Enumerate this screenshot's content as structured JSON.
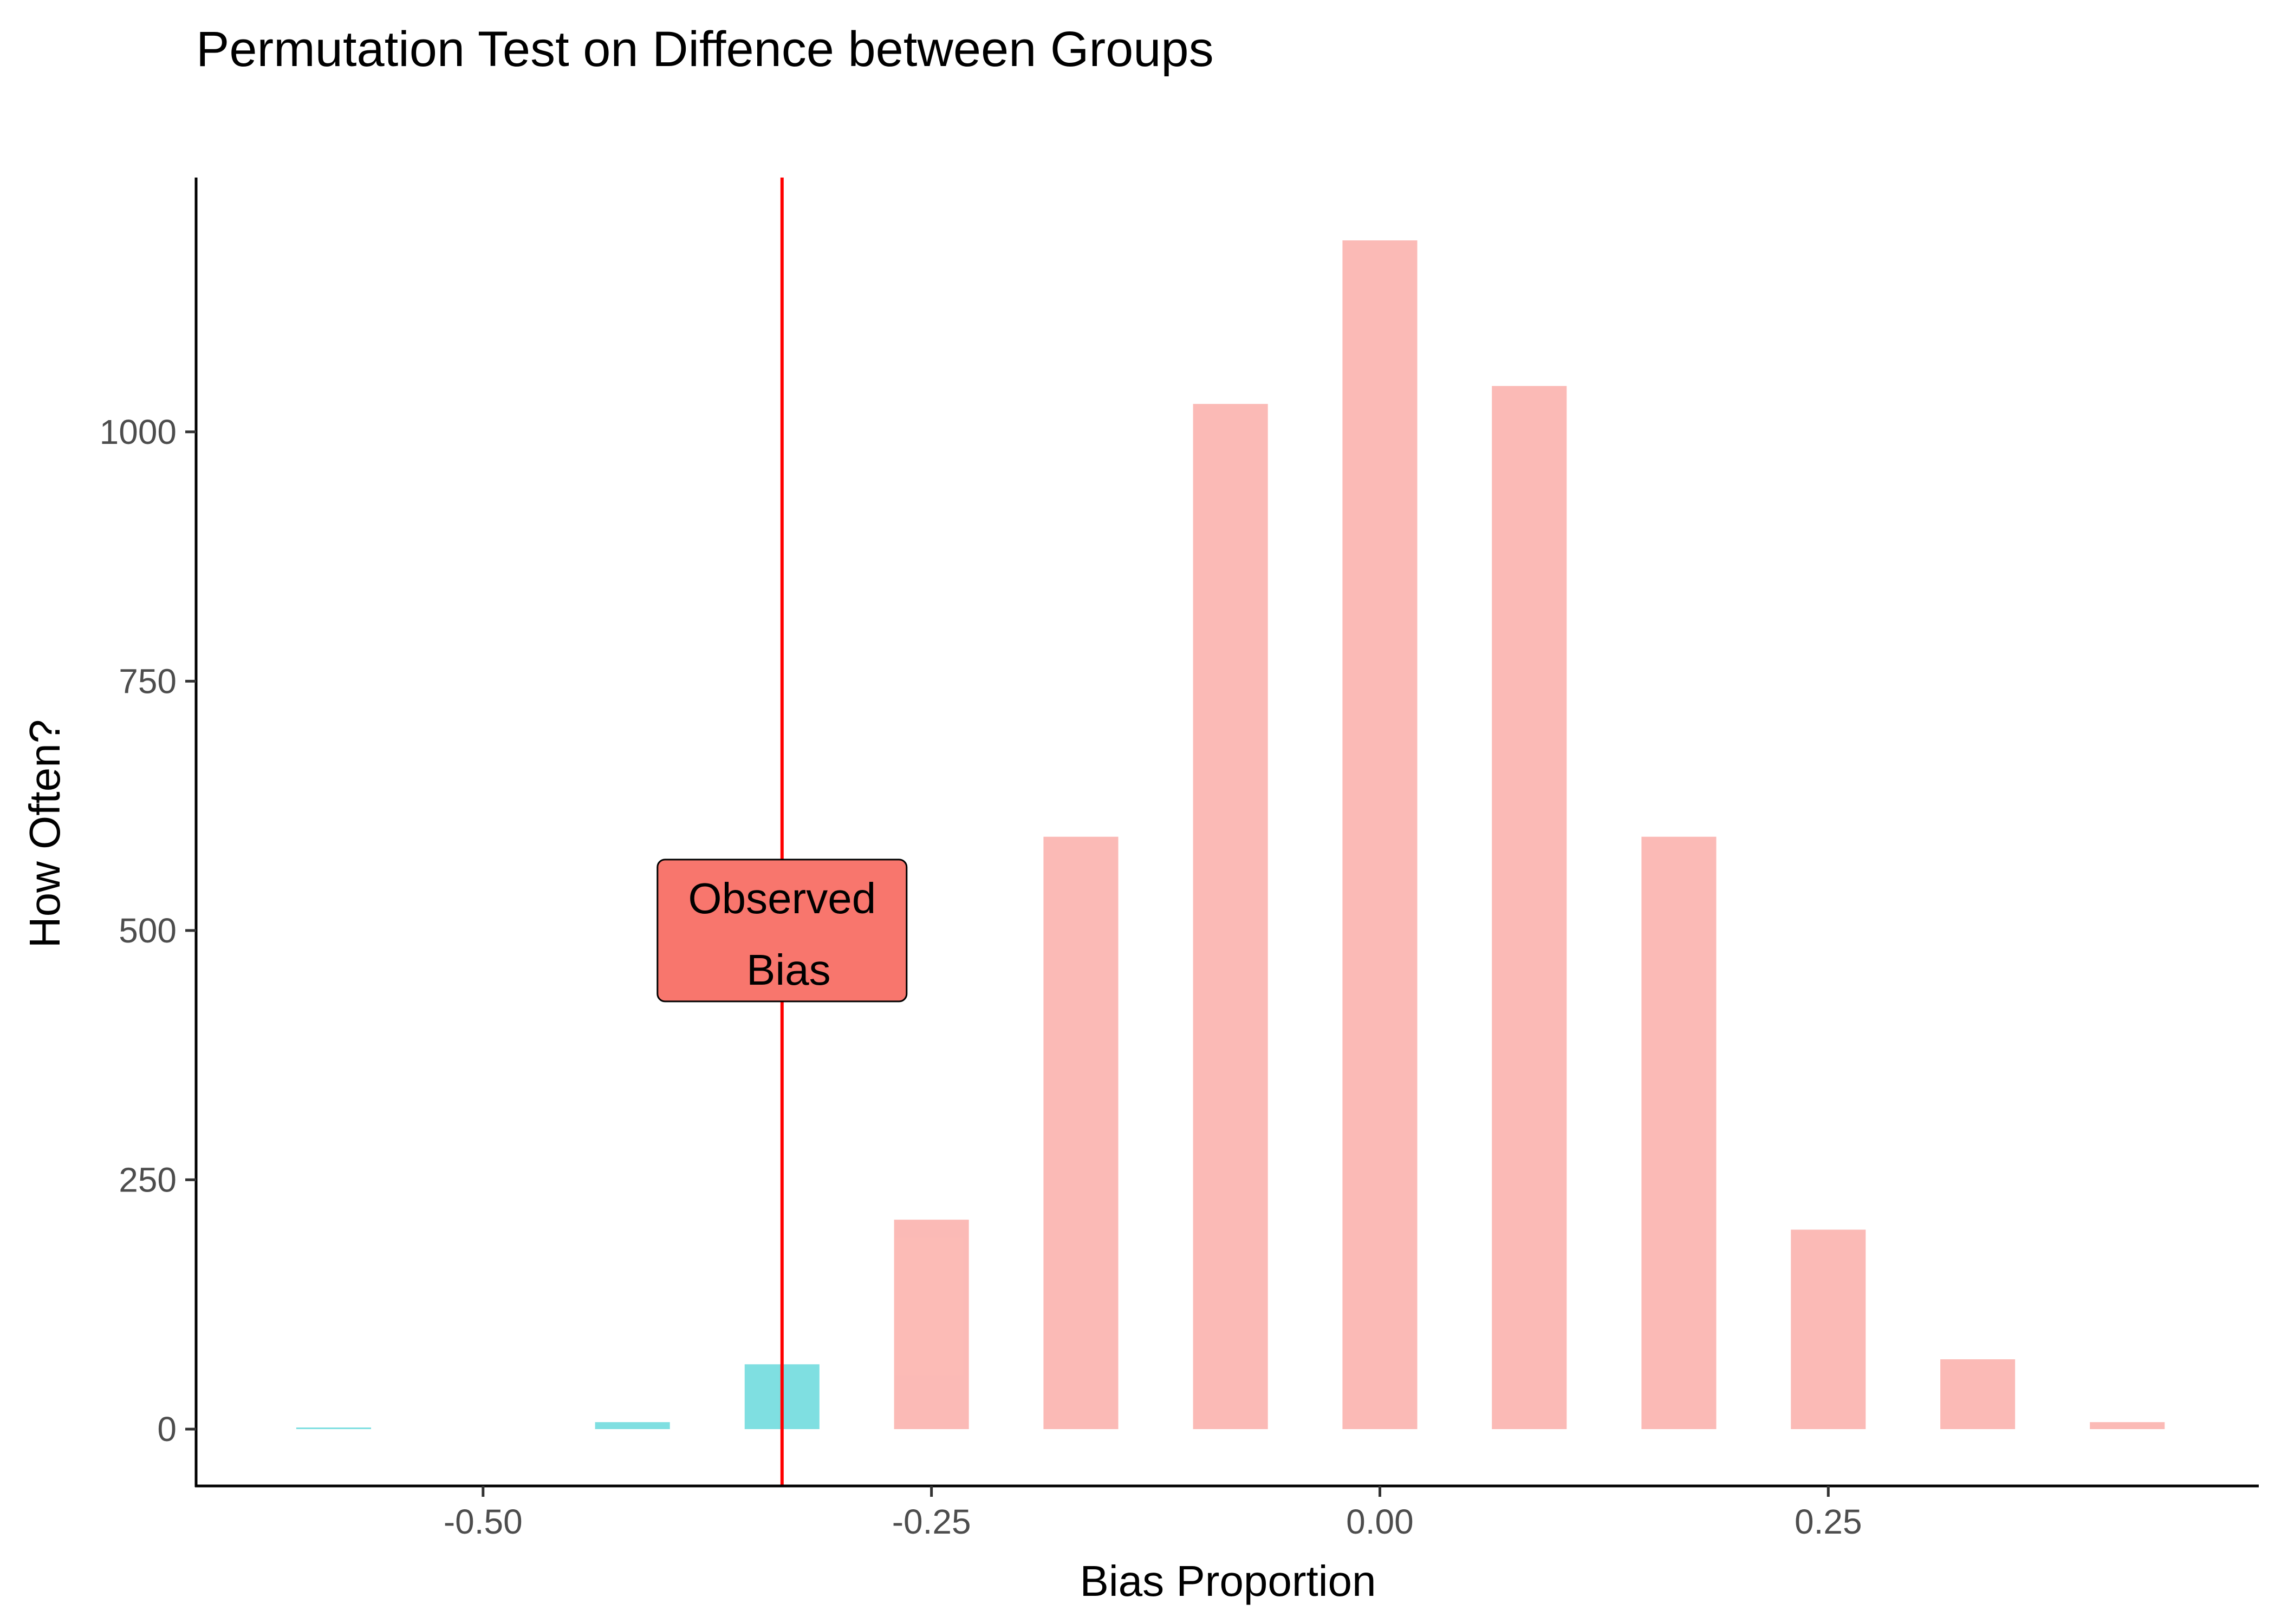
{
  "chart_data": {
    "type": "bar",
    "title": "Permutation Test on Diffence between Groups",
    "xlabel": "Bias Proportion",
    "ylabel": "How Often?",
    "xlim": [
      -0.66,
      0.49
    ],
    "ylim": [
      -57,
      1255
    ],
    "xticks": [
      -0.5,
      -0.25,
      0.0,
      0.25
    ],
    "xtick_labels": [
      "-0.50",
      "-0.25",
      "0.00",
      "0.25"
    ],
    "yticks": [
      0,
      250,
      500,
      750,
      1000
    ],
    "ytick_labels": [
      "0",
      "250",
      "500",
      "750",
      "1000"
    ],
    "grid": false,
    "bar_width": 0.0417,
    "series": [
      {
        "color": "#00BFC4",
        "x": [
          -0.5833,
          -0.4167,
          -0.3333
        ],
        "values": [
          1,
          7,
          65
        ]
      },
      {
        "color": "#F8766D",
        "x": [
          -0.25,
          -0.1667,
          -0.0833,
          0.0,
          0.0833,
          0.1667,
          0.25,
          0.3333,
          0.4167
        ],
        "values": [
          210,
          594,
          1028,
          1192,
          1046,
          594,
          200,
          70,
          7
        ]
      }
    ],
    "vline": {
      "x": -0.3333,
      "color": "#FF0000"
    },
    "annotation": {
      "lines": [
        "Observed",
        "Bias"
      ],
      "x": -0.3333,
      "y": 500,
      "fill": "#F8766D"
    }
  }
}
